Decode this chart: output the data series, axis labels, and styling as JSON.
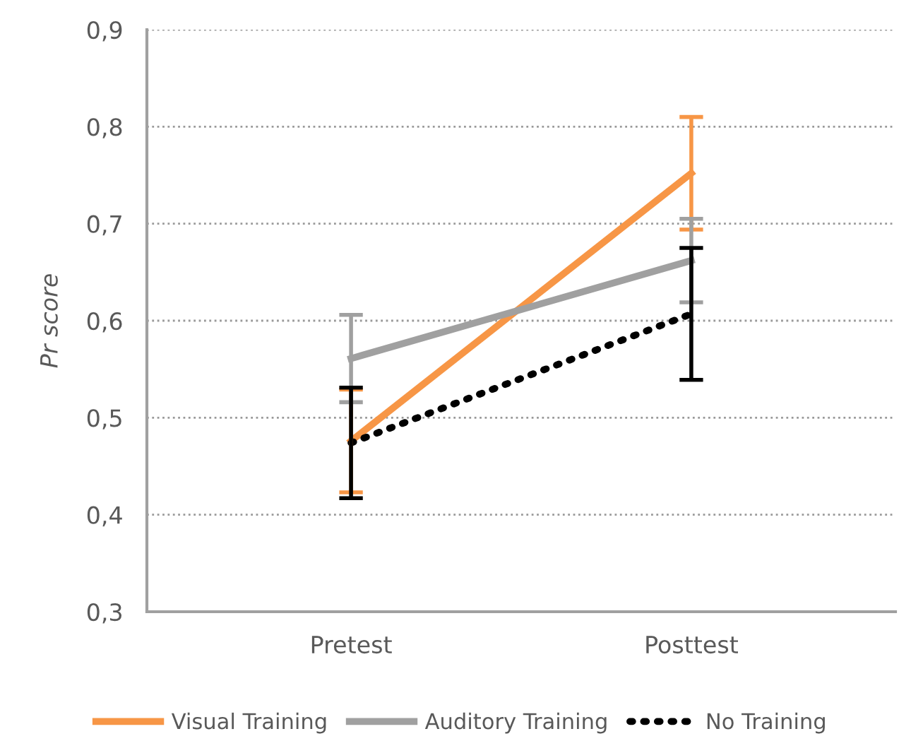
{
  "chart_data": {
    "type": "line",
    "ylabel": "Pr score",
    "categories": [
      "Pretest",
      "Posttest"
    ],
    "series": [
      {
        "name": "Visual Training",
        "color": "#f79646",
        "values": [
          0.476,
          0.752
        ],
        "errors": [
          0.053,
          0.058
        ],
        "line_style": "solid"
      },
      {
        "name": "Auditory Training",
        "color": "#a0a0a0",
        "values": [
          0.561,
          0.662
        ],
        "errors": [
          0.045,
          0.043
        ],
        "line_style": "solid"
      },
      {
        "name": "No Training",
        "color": "#000000",
        "values": [
          0.474,
          0.607
        ],
        "errors": [
          0.057,
          0.068
        ],
        "line_style": "dotted"
      }
    ],
    "ylim": [
      0.3,
      0.9
    ],
    "yticks": [
      {
        "value": 0.3,
        "label": "0,3"
      },
      {
        "value": 0.4,
        "label": "0,4"
      },
      {
        "value": 0.5,
        "label": "0,5"
      },
      {
        "value": 0.6,
        "label": "0,6"
      },
      {
        "value": 0.7,
        "label": "0,7"
      },
      {
        "value": 0.8,
        "label": "0,8"
      },
      {
        "value": 0.9,
        "label": "0,9"
      }
    ],
    "grid": "y",
    "legend": "bottom",
    "marker": "none"
  }
}
